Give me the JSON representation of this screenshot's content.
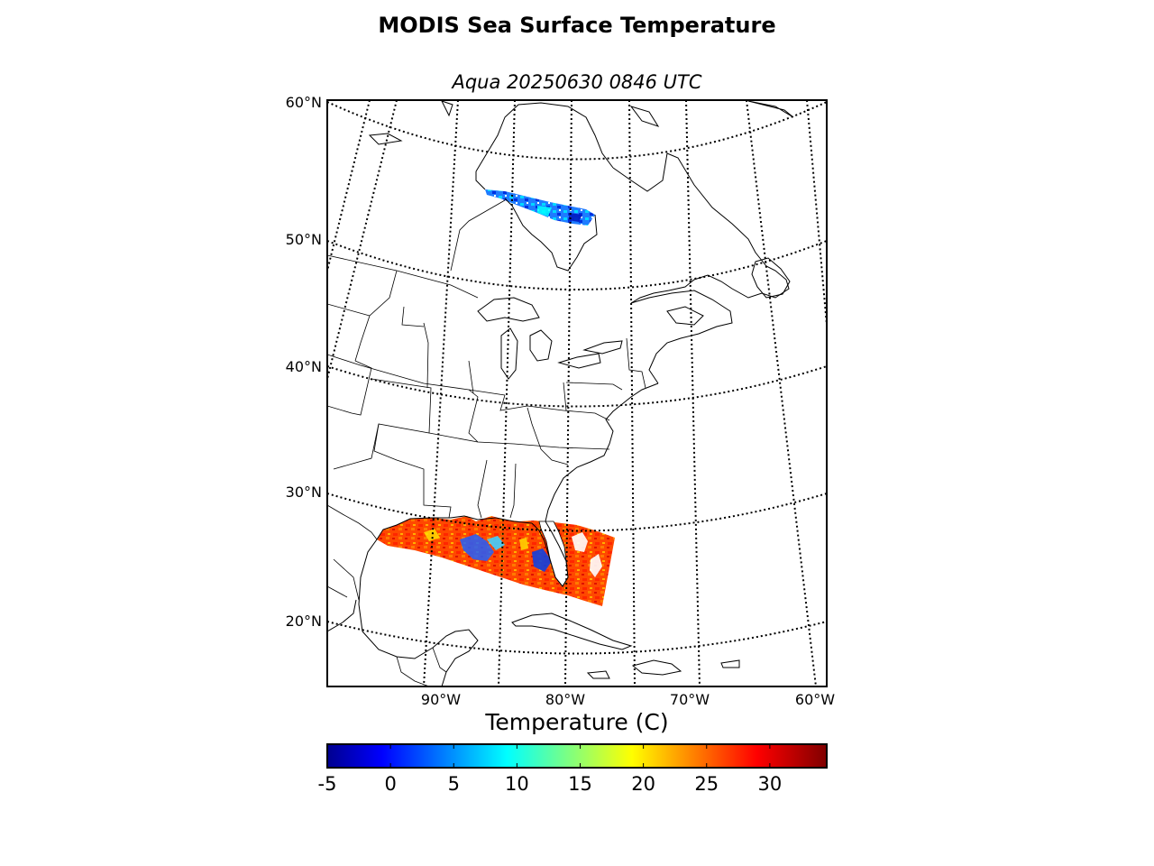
{
  "title": "MODIS Sea Surface Temperature",
  "subtitle": "Aqua 20250630 0846 UTC",
  "map": {
    "projection": "conic",
    "graticule_style": "dotted",
    "lat_labels": [
      "60°N",
      "50°N",
      "40°N",
      "30°N",
      "20°N"
    ],
    "lon_labels": [
      "90°W",
      "80°W",
      "70°W",
      "60°W"
    ],
    "features": [
      "coastlines",
      "country-borders",
      "state-borders"
    ],
    "data_swaths": [
      {
        "region": "James Bay / Hudson Bay",
        "dominant_temp": "cold"
      },
      {
        "region": "Gulf of Mexico / Florida",
        "dominant_temp": "warm"
      }
    ]
  },
  "colorbar": {
    "label": "Temperature (C)",
    "colormap": "jet",
    "ticks": [
      "-5",
      "0",
      "5",
      "10",
      "15",
      "20",
      "25",
      "30"
    ],
    "range": [
      -5,
      34.5
    ],
    "colors": [
      "#00008f",
      "#0000ff",
      "#0080ff",
      "#00ffff",
      "#80ff80",
      "#ffff00",
      "#ff8000",
      "#ff0000",
      "#800000"
    ]
  }
}
